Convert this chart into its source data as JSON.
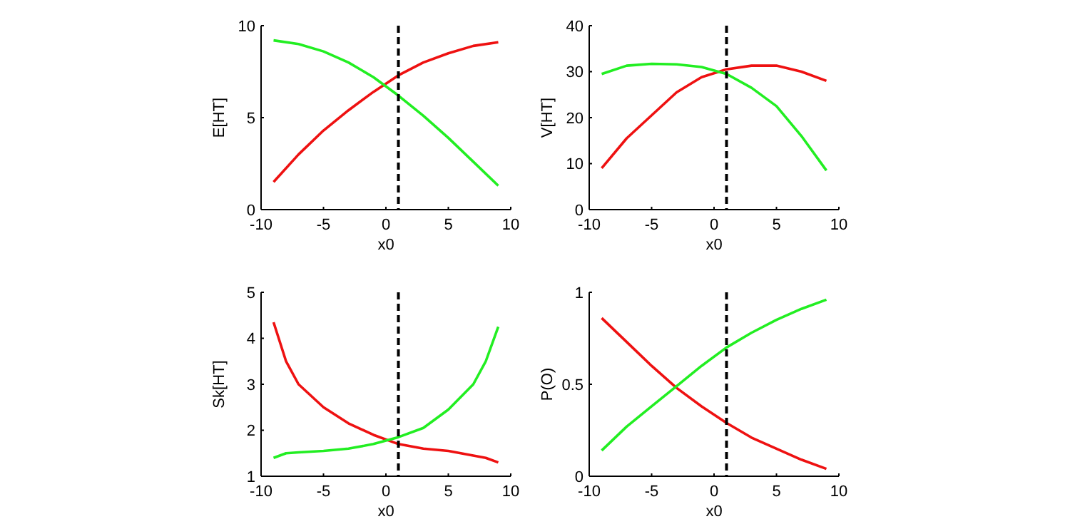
{
  "chart_data": [
    {
      "type": "line",
      "xlabel": "x0",
      "ylabel": "E[HT]",
      "x": [
        -9,
        -7,
        -5,
        -3,
        -1,
        1,
        3,
        5,
        7,
        9
      ],
      "xlim": [
        -10,
        10
      ],
      "xticks": [
        -10,
        -5,
        0,
        5,
        10
      ],
      "ylim": [
        0,
        10
      ],
      "yticks": [
        0,
        5,
        10
      ],
      "series": [
        {
          "color": "#ee1111",
          "values": [
            1.5,
            3.0,
            4.3,
            5.4,
            6.4,
            7.3,
            8.0,
            8.5,
            8.9,
            9.1
          ]
        },
        {
          "color": "#22ee22",
          "values": [
            9.2,
            9.0,
            8.6,
            8.0,
            7.2,
            6.2,
            5.1,
            3.9,
            2.6,
            1.3
          ]
        }
      ],
      "ref_lines": [
        {
          "axis": "x",
          "value": 1,
          "color": "#000000",
          "line_style": "dashed"
        }
      ]
    },
    {
      "type": "line",
      "xlabel": "x0",
      "ylabel": "V[HT]",
      "x": [
        -9,
        -7,
        -5,
        -3,
        -1,
        1,
        3,
        5,
        7,
        9
      ],
      "xlim": [
        -10,
        10
      ],
      "xticks": [
        -10,
        -5,
        0,
        5,
        10
      ],
      "ylim": [
        0,
        40
      ],
      "yticks": [
        0,
        10,
        20,
        30,
        40
      ],
      "series": [
        {
          "color": "#ee1111",
          "values": [
            9,
            15.5,
            20.5,
            25.5,
            28.8,
            30.5,
            31.3,
            31.3,
            30,
            28
          ]
        },
        {
          "color": "#22ee22",
          "values": [
            29.5,
            31.3,
            31.7,
            31.6,
            31,
            29.5,
            26.5,
            22.5,
            16,
            8.5
          ]
        }
      ],
      "ref_lines": [
        {
          "axis": "x",
          "value": 1,
          "color": "#000000",
          "line_style": "dashed"
        }
      ]
    },
    {
      "type": "line",
      "xlabel": "x0",
      "ylabel": "Sk[HT]",
      "x": [
        -9,
        -8,
        -7,
        -5,
        -3,
        -1,
        1,
        3,
        5,
        7,
        8,
        9
      ],
      "xlim": [
        -10,
        10
      ],
      "xticks": [
        -10,
        -5,
        0,
        5,
        10
      ],
      "ylim": [
        1,
        5
      ],
      "yticks": [
        1,
        2,
        3,
        4,
        5
      ],
      "series": [
        {
          "color": "#ee1111",
          "values": [
            4.35,
            3.5,
            3.0,
            2.5,
            2.15,
            1.9,
            1.7,
            1.6,
            1.55,
            1.45,
            1.4,
            1.3
          ]
        },
        {
          "color": "#22ee22",
          "values": [
            1.4,
            1.5,
            1.52,
            1.55,
            1.6,
            1.7,
            1.85,
            2.05,
            2.45,
            3.0,
            3.5,
            4.25
          ]
        }
      ],
      "ref_lines": [
        {
          "axis": "x",
          "value": 1,
          "color": "#000000",
          "line_style": "dashed"
        }
      ]
    },
    {
      "type": "line",
      "xlabel": "x0",
      "ylabel": "P(O)",
      "x": [
        -9,
        -7,
        -5,
        -3,
        -1,
        1,
        3,
        5,
        7,
        9
      ],
      "xlim": [
        -10,
        10
      ],
      "xticks": [
        -10,
        -5,
        0,
        5,
        10
      ],
      "ylim": [
        0,
        1
      ],
      "yticks": [
        0,
        0.5,
        1
      ],
      "series": [
        {
          "color": "#ee1111",
          "values": [
            0.86,
            0.73,
            0.6,
            0.48,
            0.38,
            0.29,
            0.21,
            0.15,
            0.09,
            0.04
          ]
        },
        {
          "color": "#22ee22",
          "values": [
            0.14,
            0.27,
            0.38,
            0.49,
            0.6,
            0.7,
            0.78,
            0.85,
            0.91,
            0.96
          ]
        }
      ],
      "ref_lines": [
        {
          "axis": "x",
          "value": 1,
          "color": "#000000",
          "line_style": "dashed"
        }
      ]
    }
  ]
}
